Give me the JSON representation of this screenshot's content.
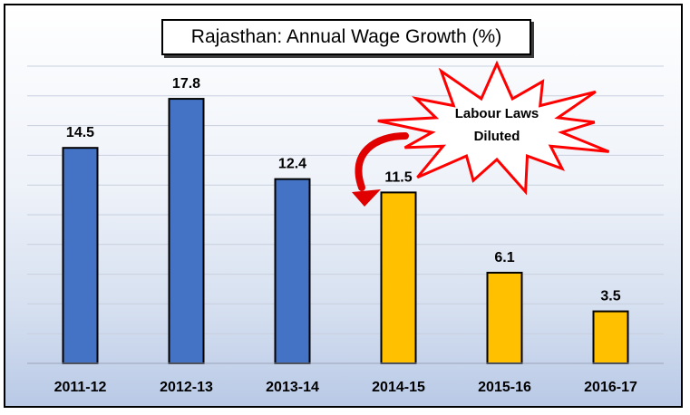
{
  "chart_data": {
    "type": "bar",
    "title": "Rajasthan: Annual Wage Growth (%)",
    "categories": [
      "2011-12",
      "2012-13",
      "2013-14",
      "2014-15",
      "2015-16",
      "2016-17"
    ],
    "values": [
      14.5,
      17.8,
      12.4,
      11.5,
      6.1,
      3.5
    ],
    "bar_colors": [
      "#4472c4",
      "#4472c4",
      "#4472c4",
      "#ffc000",
      "#ffc000",
      "#ffc000"
    ],
    "ylim": [
      0,
      20
    ],
    "grid": true,
    "annotation": {
      "line1": "Labour Laws",
      "line2": "Diluted",
      "points_to": "2014-15",
      "burst_color": "#ff0000",
      "arrow_color": "#e00000"
    }
  }
}
